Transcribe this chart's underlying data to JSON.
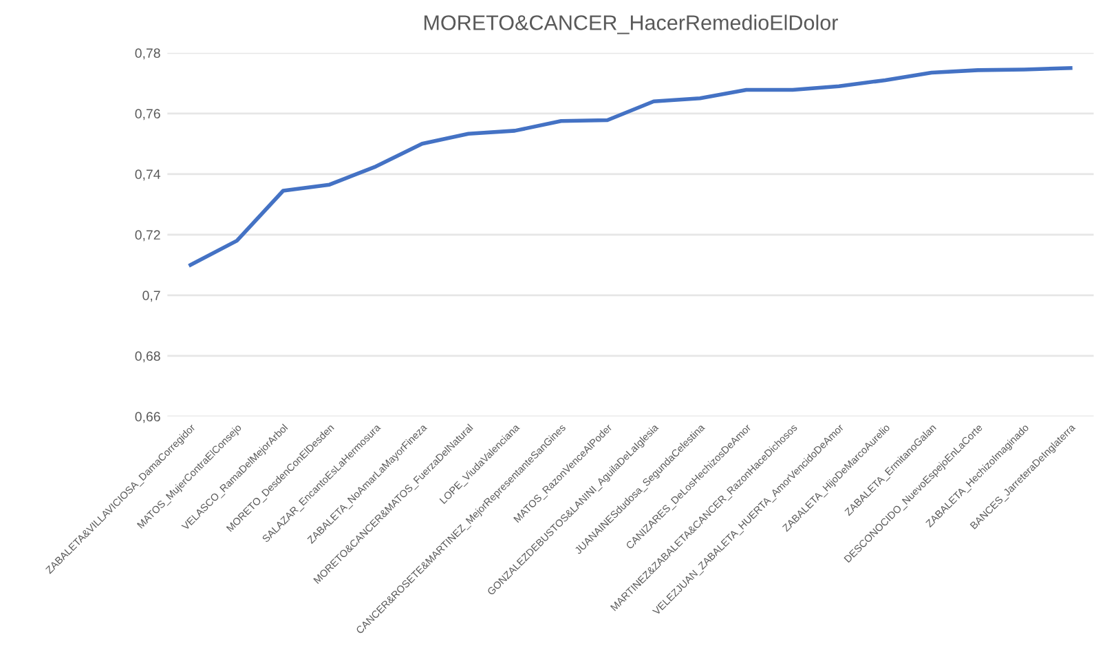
{
  "chart_data": {
    "type": "line",
    "title": "MORETO&CANCER_HacerRemedioElDolor",
    "categories": [
      "ZABALETA&VILLAVICIOSA_DamaCorregidor",
      "MATOS_MujerContraElConsejo",
      "VELASCO_RamaDelMejorArbol",
      "MORETO_DesdenConElDesden",
      "SALAZAR_EncantoEsLaHermosura",
      "ZABALETA_NoAmarLaMayorFineza",
      "MORETO&CANCER&MATOS_FuerzaDelNatural",
      "LOPE_ViudaValenciana",
      "CANCER&ROSETE&MARTINEZ_MejorRepresentanteSanGines",
      "MATOS_RazonVenceAlPoder",
      "GONZALEZDEBUSTOS&LANINI_AguilaDeLaIglesia",
      "JUANAINESdudosa_SegundaCelestina",
      "CANIZARES_DeLosHechizosDeAmor",
      "MARTINEZ&ZABALETA&CANCER_RazonHaceDichosos",
      "VELEZJUAN_ZABALETA_HUERTA_AmorVencidoDeAmor",
      "ZABALETA_HijoDeMarcoAurelio",
      "ZABALETA_ErmitanoGalan",
      "DESCONOCIDO_NuevoEspejoEnLaCorte",
      "ZABALETA_HechizoImaginado",
      "BANCES_JarreteraDeInglaterra"
    ],
    "series": [
      {
        "color": "#4472c4",
        "values": [
          0.71,
          0.718,
          0.7345,
          0.7365,
          0.7425,
          0.75,
          0.7533,
          0.7543,
          0.7575,
          0.7578,
          0.764,
          0.765,
          0.7678,
          0.7678,
          0.769,
          0.771,
          0.7735,
          0.7743,
          0.7745,
          0.775
        ]
      }
    ],
    "ylim": [
      0.66,
      0.78
    ],
    "yticks": [
      {
        "value": 0.66,
        "label": "0,66"
      },
      {
        "value": 0.68,
        "label": "0,68"
      },
      {
        "value": 0.7,
        "label": "0,7"
      },
      {
        "value": 0.72,
        "label": "0,72"
      },
      {
        "value": 0.74,
        "label": "0,74"
      },
      {
        "value": 0.76,
        "label": "0,76"
      },
      {
        "value": 0.78,
        "label": "0,78"
      }
    ],
    "grid": "y",
    "marker": "none",
    "line_style": "solid"
  }
}
